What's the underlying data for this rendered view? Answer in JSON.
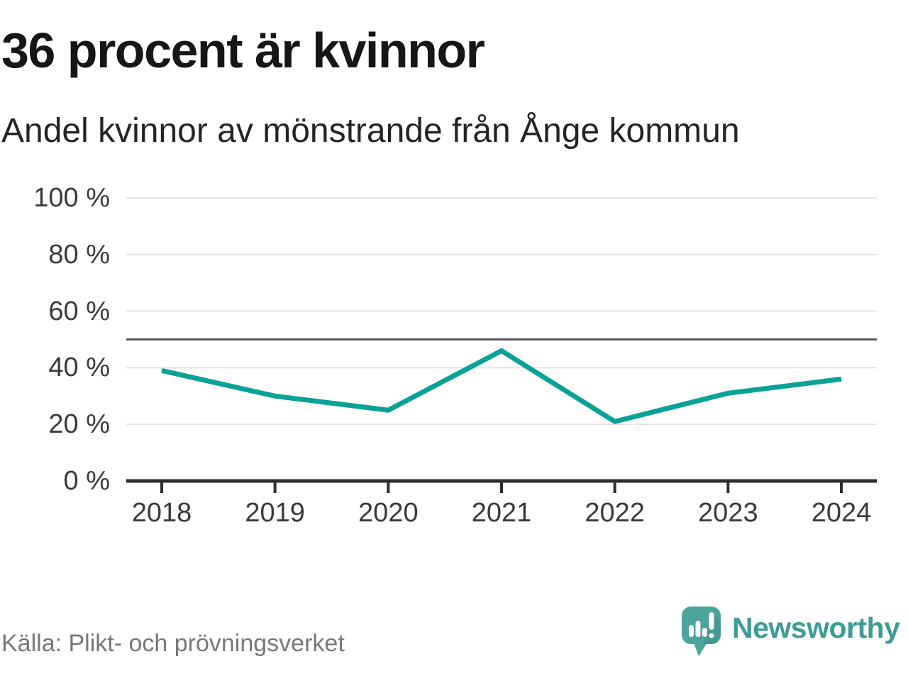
{
  "header": {
    "title": "36 procent är kvinnor",
    "subtitle": "Andel kvinnor av mönstrande från Ånge kommun"
  },
  "footer": {
    "source": "Källa: Plikt- och prövningsverket",
    "brand": "Newsworthy",
    "logo_icon": "speech-bubble-bar-chart-icon"
  },
  "colors": {
    "line": "#0aa296",
    "reference_line": "#55565c",
    "gridline": "#e3e3e3",
    "axis": "#2d2d2d",
    "title_text": "#161616",
    "axis_label_text": "#3a3a3a",
    "source_text": "#77777d",
    "brand_bubble": "#4ba59c",
    "brand_text": "#3d9c95"
  },
  "chart_data": {
    "type": "line",
    "title": "36 procent är kvinnor",
    "subtitle": "Andel kvinnor av mönstrande från Ånge kommun",
    "categories": [
      "2018",
      "2019",
      "2020",
      "2021",
      "2022",
      "2023",
      "2024"
    ],
    "series": [
      {
        "name": "Andel kvinnor av mönstrande",
        "values": [
          39,
          30,
          25,
          46,
          21,
          31,
          36
        ]
      }
    ],
    "unit": "%",
    "ylim": [
      0,
      100
    ],
    "yticks": [
      0,
      20,
      40,
      60,
      80,
      100
    ],
    "ytick_labels": [
      "0 %",
      "20 %",
      "40 %",
      "60 %",
      "80 %",
      "100 %"
    ],
    "reference_line": 50,
    "grid": true,
    "legend": "none",
    "xlabel": "",
    "ylabel": ""
  }
}
